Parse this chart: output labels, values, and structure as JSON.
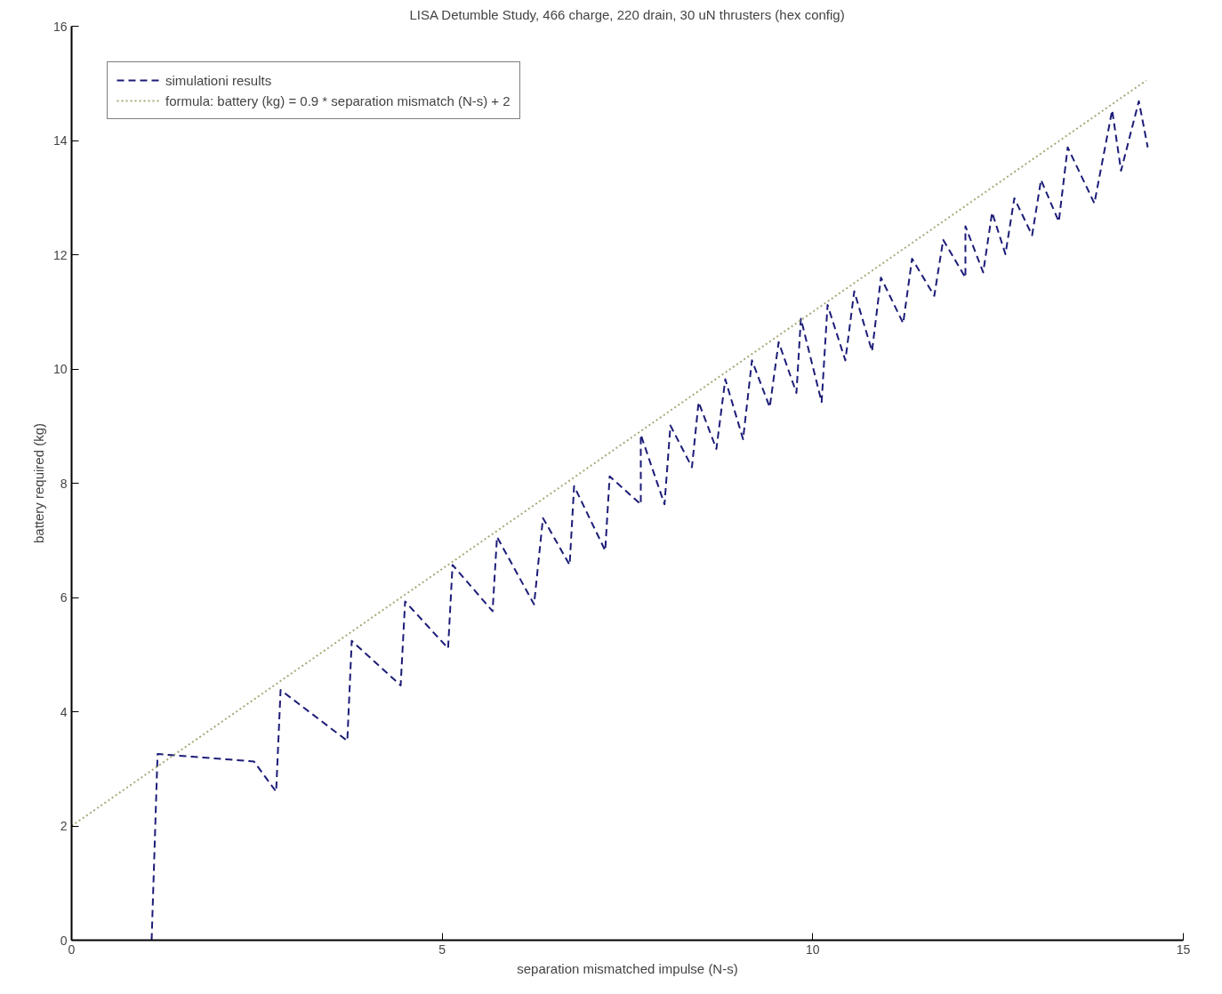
{
  "chart_data": {
    "type": "line",
    "title": "LISA Detumble Study, 466 charge, 220 drain, 30 uN thrusters (hex config)",
    "xlabel": "separation mismatched impulse (N-s)",
    "ylabel": "battery required (kg)",
    "xlim": [
      0,
      15
    ],
    "ylim": [
      0,
      16
    ],
    "xticks": [
      0,
      5,
      10,
      15
    ],
    "yticks": [
      0,
      2,
      4,
      6,
      8,
      10,
      12,
      14,
      16
    ],
    "grid": false,
    "legend": "top left",
    "series": [
      {
        "name": "simulationi results",
        "color": "#1c1c78",
        "line_style": "dashed",
        "x": [
          1.08,
          1.16,
          2.46,
          2.76,
          2.82,
          3.72,
          3.78,
          4.44,
          4.5,
          5.08,
          5.14,
          5.68,
          5.74,
          6.24,
          6.36,
          6.72,
          6.78,
          7.2,
          7.26,
          7.68,
          7.68,
          8.0,
          8.08,
          8.37,
          8.46,
          8.7,
          8.82,
          9.06,
          9.18,
          9.42,
          9.54,
          9.78,
          9.84,
          10.12,
          10.2,
          10.44,
          10.56,
          10.8,
          10.92,
          11.22,
          11.34,
          11.64,
          11.76,
          12.06,
          12.06,
          12.3,
          12.42,
          12.6,
          12.72,
          12.96,
          13.08,
          13.32,
          13.44,
          13.8,
          14.04,
          14.16,
          14.4,
          14.52
        ],
        "values": [
          0,
          3.26,
          3.13,
          2.6,
          4.38,
          3.49,
          5.24,
          4.46,
          5.93,
          5.11,
          6.57,
          5.76,
          7.06,
          5.88,
          7.39,
          6.57,
          7.95,
          6.82,
          8.12,
          7.63,
          8.85,
          7.63,
          9.01,
          8.28,
          9.42,
          8.6,
          9.82,
          8.77,
          10.15,
          9.33,
          10.47,
          9.58,
          10.88,
          9.42,
          11.12,
          10.15,
          11.36,
          10.31,
          11.6,
          10.8,
          11.93,
          11.28,
          12.26,
          11.6,
          12.5,
          11.69,
          12.74,
          12.01,
          12.99,
          12.34,
          13.31,
          12.58,
          13.88,
          12.9,
          14.53,
          13.47,
          14.69,
          13.88
        ]
      },
      {
        "name": "formula: battery (kg) = 0.9 * separation mismatch (N-s) + 2",
        "color": "#a8a878",
        "line_style": "dotted",
        "x": [
          0,
          14.5
        ],
        "values": [
          2,
          15.05
        ]
      }
    ]
  }
}
